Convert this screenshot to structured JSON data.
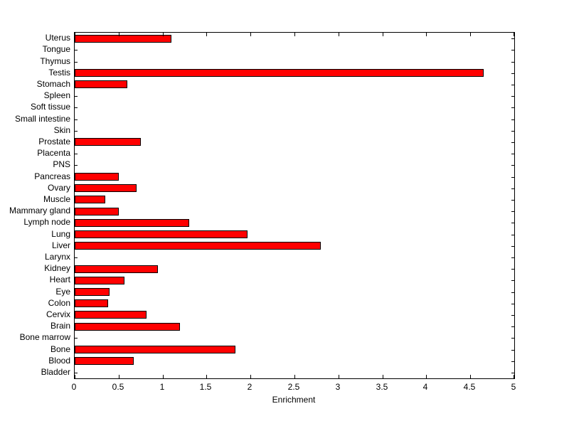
{
  "chart_data": {
    "type": "bar",
    "orientation": "horizontal",
    "title": "",
    "xlabel": "Enrichment",
    "ylabel": "",
    "xlim": [
      0,
      5
    ],
    "grid": false,
    "legend": "none",
    "bar_color": "#ff0000",
    "bar_edge_color": "#000000",
    "xtick_labels": [
      "0",
      "0.5",
      "1",
      "1.5",
      "2",
      "2.5",
      "3",
      "3.5",
      "4",
      "4.5",
      "5"
    ],
    "categories_top_to_bottom": [
      "Uterus",
      "Tongue",
      "Thymus",
      "Testis",
      "Stomach",
      "Spleen",
      "Soft tissue",
      "Small intestine",
      "Skin",
      "Prostate",
      "Placenta",
      "PNS",
      "Pancreas",
      "Ovary",
      "Muscle",
      "Mammary gland",
      "Lymph node",
      "Lung",
      "Liver",
      "Larynx",
      "Kidney",
      "Heart",
      "Eye",
      "Colon",
      "Cervix",
      "Brain",
      "Bone marrow",
      "Bone",
      "Blood",
      "Bladder"
    ],
    "values": [
      1.1,
      0,
      0,
      4.65,
      0.6,
      0,
      0,
      0,
      0,
      0.75,
      0,
      0,
      0.5,
      0.7,
      0.35,
      0.5,
      1.3,
      1.97,
      2.8,
      0,
      0.95,
      0.57,
      0.4,
      0.38,
      0.82,
      1.2,
      0,
      1.83,
      0.67,
      0
    ]
  }
}
